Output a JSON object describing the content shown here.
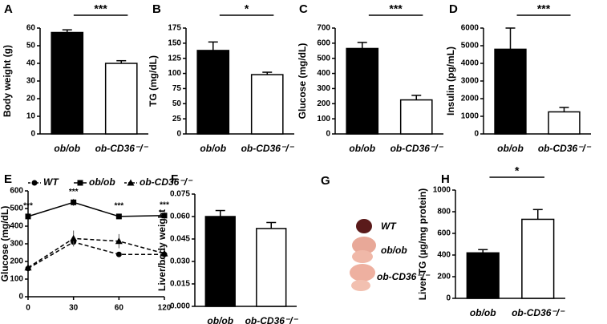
{
  "chart_data": [
    {
      "type": "bar",
      "panel": "A",
      "ylabel": "Body weight (g)",
      "categories": [
        "ob/ob",
        "ob-CD36⁻/⁻"
      ],
      "values": [
        57.5,
        40
      ],
      "errors": [
        1.5,
        1.5
      ],
      "colors": [
        "#000000",
        "#ffffff"
      ],
      "ylim": [
        0,
        60
      ],
      "yticks": [
        0,
        10,
        20,
        30,
        40,
        50,
        60
      ],
      "annotation": "***"
    },
    {
      "type": "bar",
      "panel": "B",
      "ylabel": "TG (mg/dL)",
      "categories": [
        "ob/ob",
        "ob-CD36⁻/⁻"
      ],
      "values": [
        138,
        98
      ],
      "errors": [
        14,
        4
      ],
      "colors": [
        "#000000",
        "#ffffff"
      ],
      "ylim": [
        0,
        175
      ],
      "yticks": [
        0,
        25,
        50,
        75,
        100,
        125,
        150,
        175
      ],
      "annotation": "*"
    },
    {
      "type": "bar",
      "panel": "C",
      "ylabel": "Glucose (mg/dL)",
      "categories": [
        "ob/ob",
        "ob-CD36⁻/⁻"
      ],
      "values": [
        565,
        225
      ],
      "errors": [
        40,
        30
      ],
      "colors": [
        "#000000",
        "#ffffff"
      ],
      "ylim": [
        0,
        700
      ],
      "yticks": [
        0,
        100,
        200,
        300,
        400,
        500,
        600,
        700
      ],
      "annotation": "***"
    },
    {
      "type": "bar",
      "panel": "D",
      "ylabel": "Insulin (pg/mL)",
      "categories": [
        "ob/ob",
        "ob-CD36⁻/⁻"
      ],
      "values": [
        4800,
        1250
      ],
      "errors": [
        1200,
        250
      ],
      "colors": [
        "#000000",
        "#ffffff"
      ],
      "ylim": [
        0,
        6000
      ],
      "yticks": [
        0,
        1000,
        2000,
        3000,
        4000,
        5000,
        6000
      ],
      "annotation": "***"
    },
    {
      "type": "line",
      "panel": "E",
      "ylabel": "Glucose (mg/dL)",
      "categories": [
        "0",
        "30",
        "60",
        "120"
      ],
      "ylim": [
        0,
        600
      ],
      "yticks": [
        0,
        100,
        200,
        300,
        400,
        500,
        600
      ],
      "series": [
        {
          "name": "WT",
          "color": "#000000",
          "marker": "circle",
          "linestyle": "dashed",
          "values": [
            160,
            310,
            240,
            240
          ],
          "errors": [
            10,
            15,
            10,
            10
          ]
        },
        {
          "name": "ob/ob",
          "color": "#000000",
          "marker": "square",
          "linestyle": "solid",
          "values": [
            455,
            535,
            455,
            460
          ],
          "errors": [
            15,
            20,
            15,
            20
          ]
        },
        {
          "name": "ob-CD36⁻/⁻",
          "color": "#000000",
          "marker": "triangle",
          "linestyle": "dashed",
          "values": [
            165,
            330,
            315,
            245
          ],
          "errors": [
            10,
            45,
            40,
            50
          ]
        }
      ],
      "annotations": [
        "***",
        "***",
        "***",
        "***"
      ]
    },
    {
      "type": "bar",
      "panel": "F",
      "ylabel": "Liver/body weight",
      "categories": [
        "ob/ob",
        "ob-CD36⁻/⁻"
      ],
      "values": [
        0.06,
        0.052
      ],
      "errors": [
        0.004,
        0.004
      ],
      "colors": [
        "#000000",
        "#ffffff"
      ],
      "ylim": [
        0,
        0.075
      ],
      "yticks": [
        {
          "value": 0,
          "label": "0.000"
        },
        {
          "value": 0.015,
          "label": "0.015"
        },
        {
          "value": 0.03,
          "label": "0.030"
        },
        {
          "value": 0.045,
          "label": "0.045"
        },
        {
          "value": 0.06,
          "label": "0.060"
        },
        {
          "value": 0.075,
          "label": "0.075"
        }
      ]
    },
    {
      "type": "bar",
      "panel": "H",
      "ylabel": "Liver TG (µg/mg protein)",
      "categories": [
        "ob/ob",
        "ob-CD36⁻/⁻"
      ],
      "values": [
        420,
        730
      ],
      "errors": [
        30,
        90
      ],
      "colors": [
        "#000000",
        "#ffffff"
      ],
      "ylim": [
        0,
        1000
      ],
      "yticks": [
        0,
        200,
        400,
        600,
        800,
        1000
      ],
      "annotation": "*"
    }
  ],
  "panel_g": {
    "panel": "G",
    "labels": [
      "WT",
      "ob/ob",
      "ob-CD36⁻/⁻"
    ]
  }
}
